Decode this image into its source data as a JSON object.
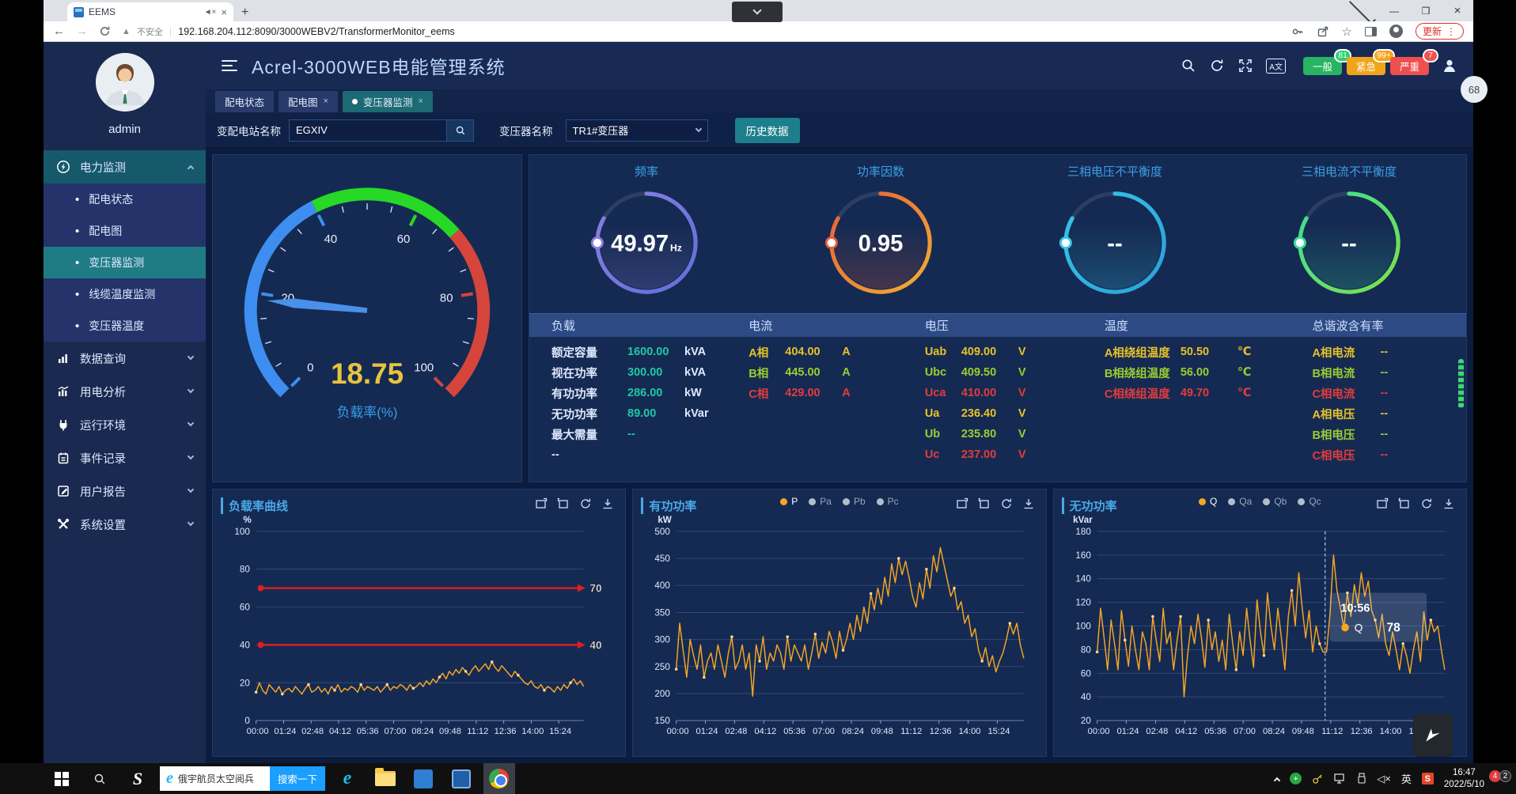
{
  "browser": {
    "tab_title": "EEMS",
    "new_tab": "+",
    "security_label": "不安全",
    "url": "192.168.204.112:8090/3000WEBV2/TransformerMonitor_eems",
    "update_label": "更新"
  },
  "overlay": {
    "side_badge": "68"
  },
  "app_header": {
    "title": "Acrel-3000WEB电能管理系统",
    "alarm_badges": [
      {
        "label": "一般",
        "count": "81",
        "pill_color": "#28b463",
        "bubble_color": "#2ad173"
      },
      {
        "label": "紧急",
        "count": "99+",
        "pill_color": "#f0a41a",
        "bubble_color": "#f5a61a"
      },
      {
        "label": "严重",
        "count": "7",
        "pill_color": "#ef4f4f",
        "bubble_color": "#f05050"
      }
    ]
  },
  "chips": [
    {
      "label": "配电状态",
      "closable": false,
      "active": false
    },
    {
      "label": "配电图",
      "closable": true,
      "active": false
    },
    {
      "label": "变压器监测",
      "closable": true,
      "active": true
    }
  ],
  "filters": {
    "station_label": "变配电站名称",
    "station_value": "EGXIV",
    "transformer_label": "变压器名称",
    "transformer_value": "TR1#变压器",
    "history_button": "历史数据"
  },
  "sidebar": {
    "username": "admin",
    "items": [
      {
        "label": "电力监测",
        "icon": "power-monitor-icon",
        "expanded": true,
        "active": true,
        "children": [
          {
            "label": "配电状态",
            "active": false
          },
          {
            "label": "配电图",
            "active": false
          },
          {
            "label": "变压器监测",
            "active": true
          },
          {
            "label": "线缆温度监测",
            "active": false
          },
          {
            "label": "变压器温度",
            "active": false
          }
        ]
      },
      {
        "label": "数据查询",
        "icon": "data-query-icon",
        "expanded": false
      },
      {
        "label": "用电分析",
        "icon": "analysis-icon",
        "expanded": false
      },
      {
        "label": "运行环境",
        "icon": "environment-icon",
        "expanded": false
      },
      {
        "label": "事件记录",
        "icon": "event-log-icon",
        "expanded": false
      },
      {
        "label": "用户报告",
        "icon": "report-icon",
        "expanded": false
      },
      {
        "label": "系统设置",
        "icon": "settings-icon",
        "expanded": false
      }
    ]
  },
  "load_gauge": {
    "value": 18.75,
    "min": 0,
    "max": 100,
    "label": "负载率(%)",
    "ticks": [
      0,
      20,
      40,
      60,
      80,
      100
    ],
    "bands": [
      {
        "to": 0.4,
        "color": "#3d8ef0"
      },
      {
        "to": 0.68,
        "color": "#27d827"
      },
      {
        "to": 1.0,
        "color": "#d5453c"
      }
    ],
    "value_color": "#e8c341",
    "needle_color": "#4a90e8"
  },
  "ring_gauges": [
    {
      "title": "频率",
      "value": "49.97",
      "unit": "Hz",
      "color": "#8b7fe0",
      "color2": "#5f6fd8"
    },
    {
      "title": "功率因数",
      "value": "0.95",
      "unit": "",
      "color": "#e85c3a",
      "color2": "#f0b030"
    },
    {
      "title": "三相电压不平衡度",
      "value": "--",
      "unit": "",
      "color": "#35c8e8",
      "color2": "#2a9fd8"
    },
    {
      "title": "三相电流不平衡度",
      "value": "--",
      "unit": "",
      "color": "#38df96",
      "color2": "#7ee04a"
    }
  ],
  "data_table": {
    "phase_colors": {
      "phaseA": "#e6c229",
      "phaseB": "#9acd32",
      "phaseC": "#e23c3c",
      "teal": "#1fc8a6",
      "white": "#dfe8ff"
    },
    "columns": [
      {
        "header": "负载",
        "rows": [
          {
            "label": "额定容量",
            "value": "1600.00",
            "unit": "kVA",
            "color": "teal"
          },
          {
            "label": "视在功率",
            "value": "300.00",
            "unit": "kVA",
            "color": "teal"
          },
          {
            "label": "有功功率",
            "value": "286.00",
            "unit": "kW",
            "color": "teal"
          },
          {
            "label": "无功功率",
            "value": "89.00",
            "unit": "kVar",
            "color": "teal"
          },
          {
            "label": "最大需量",
            "value": "--",
            "unit": "",
            "color": "teal"
          },
          {
            "label": "--",
            "value": "",
            "unit": "",
            "color": "white"
          }
        ]
      },
      {
        "header": "电流",
        "rows": [
          {
            "label": "A相",
            "value": "404.00",
            "unit": "A",
            "color": "phaseA"
          },
          {
            "label": "B相",
            "value": "445.00",
            "unit": "A",
            "color": "phaseB"
          },
          {
            "label": "C相",
            "value": "429.00",
            "unit": "A",
            "color": "phaseC"
          }
        ]
      },
      {
        "header": "电压",
        "rows": [
          {
            "label": "Uab",
            "value": "409.00",
            "unit": "V",
            "color": "phaseA"
          },
          {
            "label": "Ubc",
            "value": "409.50",
            "unit": "V",
            "color": "phaseB"
          },
          {
            "label": "Uca",
            "value": "410.00",
            "unit": "V",
            "color": "phaseC"
          },
          {
            "label": "Ua",
            "value": "236.40",
            "unit": "V",
            "color": "phaseA"
          },
          {
            "label": "Ub",
            "value": "235.80",
            "unit": "V",
            "color": "phaseB"
          },
          {
            "label": "Uc",
            "value": "237.00",
            "unit": "V",
            "color": "phaseC"
          }
        ]
      },
      {
        "header": "温度",
        "rows": [
          {
            "label": "A相绕组温度",
            "value": "50.50",
            "unit": "℃",
            "color": "phaseA"
          },
          {
            "label": "B相绕组温度",
            "value": "56.00",
            "unit": "℃",
            "color": "phaseB"
          },
          {
            "label": "C相绕组温度",
            "value": "49.70",
            "unit": "℃",
            "color": "phaseC"
          }
        ]
      },
      {
        "header": "总谐波含有率",
        "rows": [
          {
            "label": "A相电流",
            "value": "--",
            "unit": "",
            "color": "phaseA"
          },
          {
            "label": "B相电流",
            "value": "--",
            "unit": "",
            "color": "phaseB"
          },
          {
            "label": "C相电流",
            "value": "--",
            "unit": "",
            "color": "phaseC"
          },
          {
            "label": "A相电压",
            "value": "--",
            "unit": "",
            "color": "phaseA"
          },
          {
            "label": "B相电压",
            "value": "--",
            "unit": "",
            "color": "phaseB"
          },
          {
            "label": "C相电压",
            "value": "--",
            "unit": "",
            "color": "phaseC"
          }
        ]
      }
    ]
  },
  "chart_data": [
    {
      "type": "line",
      "title": "负载率曲线",
      "ylabel": "%",
      "ylim": [
        0,
        100
      ],
      "ystep": 20,
      "grid": true,
      "x_tick_labels": [
        "00:00",
        "01:24",
        "02:48",
        "04:12",
        "05:36",
        "07:00",
        "08:24",
        "09:48",
        "11:12",
        "12:36",
        "14:00",
        "15:24"
      ],
      "x_minutes_per_point": 10,
      "x_max_minutes": 1000,
      "marklines": [
        {
          "y": 70,
          "label": "70"
        },
        {
          "y": 40,
          "label": "40"
        }
      ],
      "markline_color": "#e01f1f",
      "series": [
        {
          "name": "负载率",
          "color": "#f5a623",
          "values": [
            15,
            20,
            16,
            14,
            19,
            17,
            15,
            18,
            14,
            16,
            17,
            15,
            18,
            16,
            14,
            17,
            19,
            15,
            16,
            18,
            15,
            17,
            14,
            18,
            16,
            19,
            15,
            17,
            16,
            18,
            17,
            15,
            19,
            16,
            18,
            17,
            16,
            18,
            15,
            17,
            19,
            16,
            18,
            17,
            19,
            18,
            16,
            19,
            17,
            18,
            20,
            18,
            21,
            19,
            22,
            20,
            23,
            25,
            22,
            26,
            24,
            27,
            25,
            28,
            26,
            24,
            27,
            29,
            26,
            28,
            30,
            27,
            31,
            28,
            26,
            29,
            27,
            25,
            23,
            26,
            24,
            22,
            20,
            19,
            21,
            18,
            17,
            19,
            16,
            18,
            17,
            15,
            18,
            16,
            19,
            17,
            20,
            22,
            19,
            21,
            18
          ]
        }
      ]
    },
    {
      "type": "line",
      "title": "有功功率",
      "ylabel": "kW",
      "ylim": [
        150,
        500
      ],
      "ystep": 50,
      "grid": true,
      "legend_position": "top-center",
      "x_tick_labels": [
        "00:00",
        "01:24",
        "02:48",
        "04:12",
        "05:36",
        "07:00",
        "08:24",
        "09:48",
        "11:12",
        "12:36",
        "14:00",
        "15:24"
      ],
      "x_minutes_per_point": 10,
      "x_max_minutes": 1000,
      "legend": [
        {
          "name": "P",
          "color": "#f5a623",
          "active": true
        },
        {
          "name": "Pa",
          "color": "#b4bcca",
          "active": false
        },
        {
          "name": "Pb",
          "color": "#b4bcca",
          "active": false
        },
        {
          "name": "Pc",
          "color": "#b4bcca",
          "active": false
        }
      ],
      "series": [
        {
          "name": "P",
          "color": "#f5a623",
          "values": [
            245,
            330,
            280,
            230,
            300,
            270,
            245,
            290,
            230,
            260,
            275,
            245,
            290,
            260,
            230,
            275,
            305,
            245,
            260,
            290,
            245,
            275,
            195,
            290,
            260,
            305,
            245,
            275,
            260,
            290,
            275,
            245,
            305,
            260,
            290,
            275,
            260,
            290,
            245,
            275,
            310,
            265,
            295,
            275,
            315,
            295,
            265,
            315,
            280,
            300,
            330,
            300,
            345,
            315,
            360,
            330,
            385,
            355,
            395,
            365,
            415,
            380,
            440,
            405,
            450,
            420,
            445,
            415,
            380,
            360,
            405,
            375,
            430,
            395,
            455,
            425,
            470,
            440,
            410,
            380,
            395,
            355,
            370,
            330,
            345,
            305,
            320,
            280,
            260,
            285,
            250,
            270,
            240,
            260,
            275,
            300,
            330,
            310,
            330,
            290,
            265
          ]
        }
      ]
    },
    {
      "type": "line",
      "title": "无功功率",
      "ylabel": "kVar",
      "ylim": [
        20,
        180
      ],
      "ystep": 20,
      "grid": true,
      "legend_position": "top-center",
      "x_tick_labels": [
        "00:00",
        "01:24",
        "02:48",
        "04:12",
        "05:36",
        "07:00",
        "08:24",
        "09:48",
        "11:12",
        "12:36",
        "14:00",
        "15:24"
      ],
      "x_minutes_per_point": 10,
      "x_max_minutes": 1000,
      "legend": [
        {
          "name": "Q",
          "color": "#f5a623",
          "active": true
        },
        {
          "name": "Qa",
          "color": "#b4bcca",
          "active": false
        },
        {
          "name": "Qb",
          "color": "#b4bcca",
          "active": false
        },
        {
          "name": "Qc",
          "color": "#b4bcca",
          "active": false
        }
      ],
      "tooltip": {
        "time": "10:56",
        "series": "Q",
        "value": 78,
        "t_minutes": 656
      },
      "series": [
        {
          "name": "Q",
          "color": "#f5a623",
          "values": [
            78,
            115,
            90,
            63,
            105,
            85,
            63,
            113,
            88,
            66,
            100,
            80,
            63,
            95,
            85,
            63,
            108,
            88,
            70,
            115,
            85,
            95,
            63,
            88,
            108,
            40,
            75,
            100,
            85,
            110,
            90,
            65,
            105,
            80,
            95,
            70,
            88,
            63,
            110,
            85,
            63,
            95,
            75,
            115,
            88,
            65,
            122,
            95,
            75,
            128,
            100,
            80,
            115,
            90,
            63,
            108,
            130,
            100,
            145,
            115,
            90,
            113,
            78,
            100,
            85,
            78,
            78,
            110,
            160,
            130,
            115,
            98,
            128,
            108,
            135,
            118,
            145,
            125,
            138,
            113,
            105,
            90,
            110,
            85,
            75,
            95,
            80,
            63,
            85,
            75,
            60,
            80,
            95,
            70,
            112,
            88,
            105,
            95,
            100,
            80,
            63
          ]
        }
      ]
    }
  ],
  "taskbar": {
    "search_widget": {
      "text": "俄宇航员太空阅兵",
      "button": "搜索一下"
    },
    "tray_ime": "英",
    "clock_time": "16:47",
    "clock_date": "2022/5/10",
    "badge_alerts": "4",
    "badge_notifications": "2"
  }
}
